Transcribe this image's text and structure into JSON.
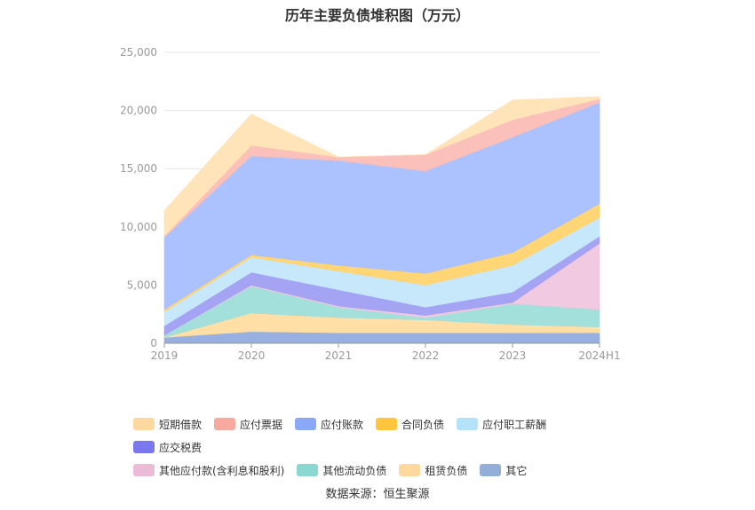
{
  "chart_data": {
    "type": "area",
    "title": "历年主要负债堆积图（万元）",
    "categories": [
      "2019",
      "2020",
      "2021",
      "2022",
      "2023",
      "2024H1"
    ],
    "ylim": [
      0,
      25000
    ],
    "yticks": [
      "0",
      "5,000",
      "10,000",
      "15,000",
      "20,000",
      "25,000"
    ],
    "grid": true,
    "legend_position": "bottom",
    "series": [
      {
        "name": "其它",
        "color": "#91acdf",
        "values": [
          500,
          1000,
          900,
          900,
          900,
          900
        ]
      },
      {
        "name": "租赁负债",
        "color": "#ffdda0",
        "values": [
          0,
          1600,
          1300,
          1100,
          700,
          500
        ]
      },
      {
        "name": "其他流动负债",
        "color": "#9fded9",
        "values": [
          200,
          2300,
          900,
          200,
          1800,
          1500
        ]
      },
      {
        "name": "其他应付款(含利息和股利)",
        "color": "#f0c6df",
        "values": [
          0,
          100,
          100,
          200,
          100,
          5700
        ]
      },
      {
        "name": "应交税费",
        "color": "#a09ef2",
        "values": [
          800,
          1100,
          1400,
          700,
          900,
          600
        ]
      },
      {
        "name": "应付职工薪酬",
        "color": "#c4e7fb",
        "values": [
          1200,
          1300,
          1600,
          1900,
          2300,
          1600
        ]
      },
      {
        "name": "合同负债",
        "color": "#ffd36e",
        "values": [
          200,
          200,
          500,
          1000,
          1100,
          1200
        ]
      },
      {
        "name": "应付账款",
        "color": "#a8bffe",
        "values": [
          6200,
          8500,
          9000,
          8800,
          9900,
          8700
        ]
      },
      {
        "name": "应付票据",
        "color": "#fbbdb5",
        "values": [
          100,
          900,
          300,
          1400,
          1500,
          300
        ]
      },
      {
        "name": "短期借款",
        "color": "#ffe2b5",
        "values": [
          2200,
          2700,
          0,
          0,
          1700,
          200
        ]
      }
    ]
  },
  "legend": {
    "row1": [
      {
        "label": "短期借款",
        "color": "#ffd8a0"
      },
      {
        "label": "应付票据",
        "color": "#f7a9a0"
      },
      {
        "label": "应付账款",
        "color": "#8ba7f7"
      },
      {
        "label": "合同负债",
        "color": "#ffc53d"
      },
      {
        "label": "应付职工薪酬",
        "color": "#b3e2fa"
      },
      {
        "label": "应交税费",
        "color": "#7b78ef"
      }
    ],
    "row2": [
      {
        "label": "其他应付款(含利息和股利)",
        "color": "#ebbad7"
      },
      {
        "label": "其他流动负债",
        "color": "#8ad8d1"
      },
      {
        "label": "租赁负债",
        "color": "#ffd8a0"
      },
      {
        "label": "其它",
        "color": "#93aed8"
      }
    ]
  },
  "footer": {
    "source": "数据来源：恒生聚源"
  }
}
